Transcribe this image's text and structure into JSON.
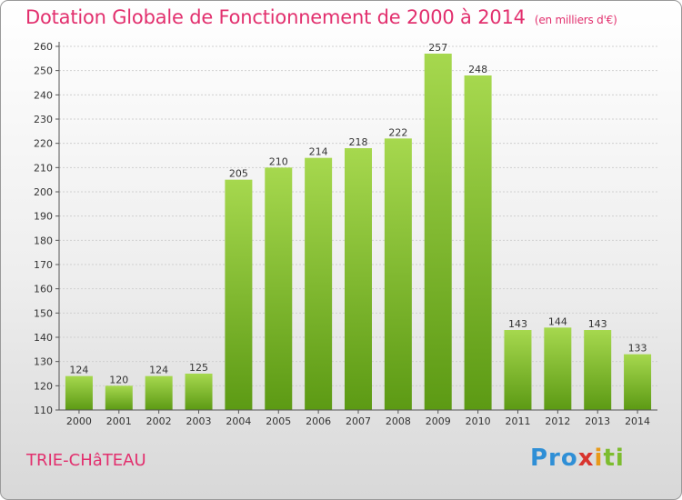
{
  "chart_data": {
    "type": "bar",
    "title": "Dotation Globale de Fonctionnement de 2000 à 2014",
    "subtitle": "(en milliers d'€)",
    "categories": [
      "2000",
      "2001",
      "2002",
      "2003",
      "2004",
      "2005",
      "2006",
      "2007",
      "2008",
      "2009",
      "2010",
      "2011",
      "2012",
      "2013",
      "2014"
    ],
    "values": [
      124,
      120,
      124,
      125,
      205,
      210,
      214,
      218,
      222,
      257,
      248,
      143,
      144,
      143,
      133
    ],
    "ylim": [
      110,
      260
    ],
    "yticks": [
      110,
      120,
      130,
      140,
      150,
      160,
      170,
      180,
      190,
      200,
      210,
      220,
      230,
      240,
      250,
      260
    ],
    "grid": true,
    "colors": {
      "bar_light": "#a6d84e",
      "bar_dark": "#5c9a14",
      "title": "#e2306e"
    }
  },
  "footer": {
    "commune": "TRIE-CHâTEAU",
    "logo": [
      "Pro",
      "x",
      "i",
      "ti"
    ]
  }
}
